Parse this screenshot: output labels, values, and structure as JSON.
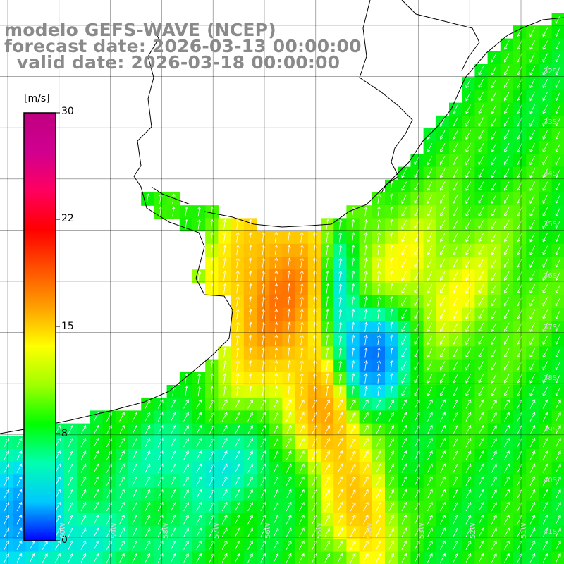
{
  "title": {
    "line1": "modelo GEFS-WAVE (NCEP)",
    "line2": "forecast date: 2026-03-13 00:00:00",
    "line3": "  valid date: 2026-03-18 00:00:00"
  },
  "colorbar": {
    "unit": "[m/s]",
    "ticks": [
      "30",
      "22",
      "15",
      "8",
      "0"
    ],
    "tick_values": [
      30,
      22,
      15,
      8,
      0
    ],
    "colors": [
      "#0000ff",
      "#00c8ff",
      "#00ffb0",
      "#00ff00",
      "#a0ff00",
      "#ffff00",
      "#ffa000",
      "#ff5000",
      "#ff0000",
      "#ff0060",
      "#d00090",
      "#c00080"
    ]
  },
  "lat_labels": [
    "32S",
    "33S",
    "34S",
    "35S",
    "36S",
    "37S",
    "38S",
    "39S",
    "40S",
    "41S"
  ],
  "lon_labels": [
    "60W",
    "59W",
    "58W",
    "57W",
    "56W",
    "55W",
    "54W",
    "53W",
    "52W",
    "51W"
  ],
  "colors": {
    "land": "#ffffff",
    "coast": "#000000",
    "grid": "#000000",
    "arrows": "#ffffff",
    "title": "#8a8a8a"
  }
}
